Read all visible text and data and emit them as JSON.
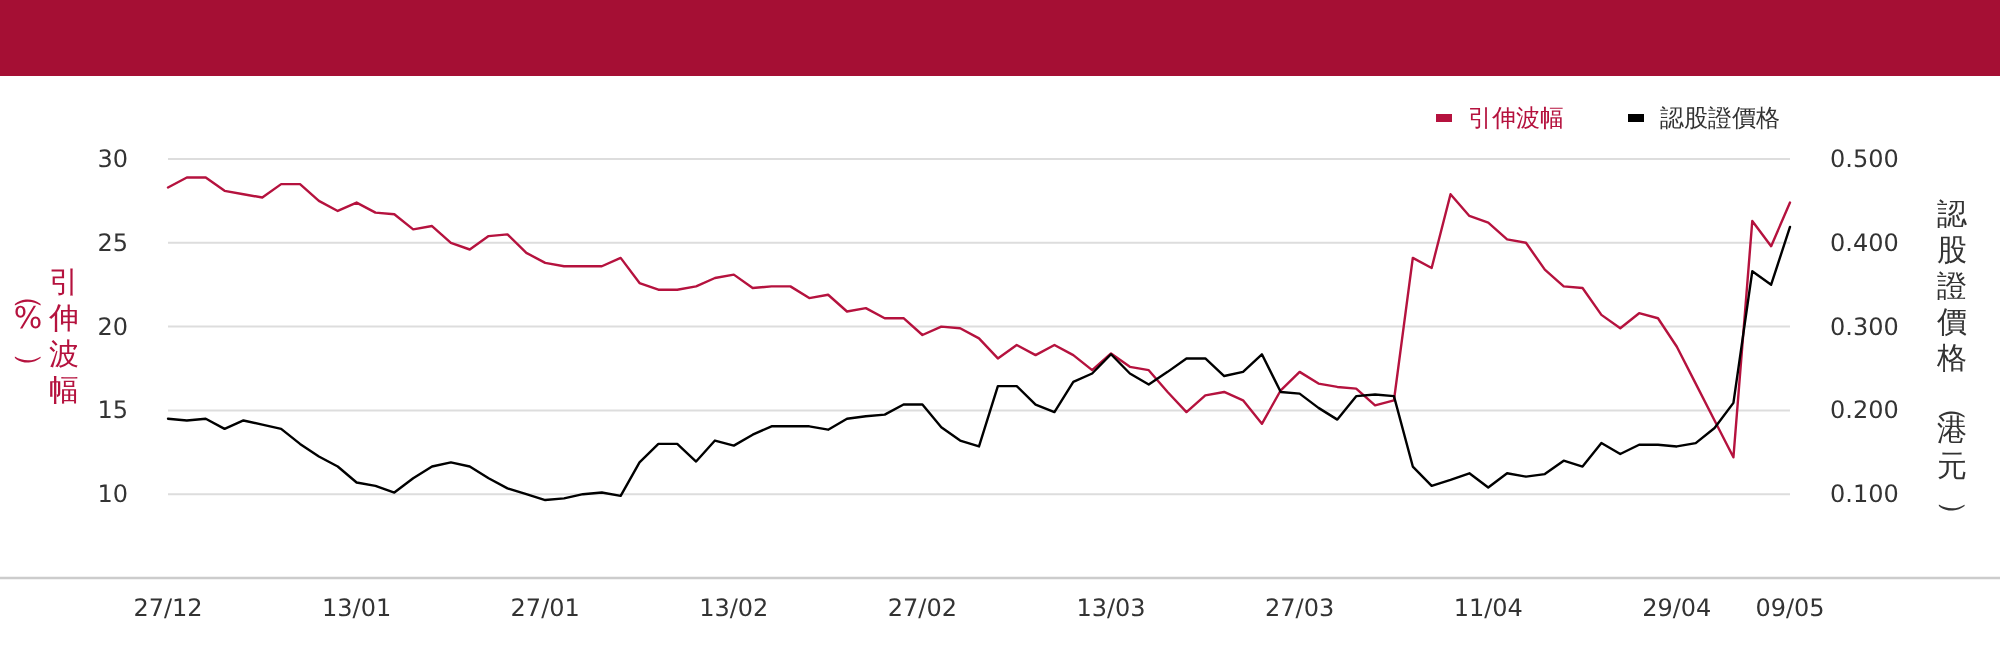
{
  "chart_data": {
    "type": "line",
    "ylabel": "引伸波幅（%）",
    "y2label": "認股證價格（港元）",
    "categories": [
      "27/12",
      null,
      null,
      null,
      null,
      null,
      null,
      null,
      null,
      null,
      "13/01",
      null,
      null,
      null,
      null,
      null,
      null,
      null,
      null,
      null,
      "27/01",
      null,
      null,
      null,
      null,
      null,
      null,
      null,
      null,
      null,
      "13/02",
      null,
      null,
      null,
      null,
      null,
      null,
      null,
      null,
      null,
      "27/02",
      null,
      null,
      null,
      null,
      null,
      null,
      null,
      null,
      null,
      "13/03",
      null,
      null,
      null,
      null,
      null,
      null,
      null,
      null,
      null,
      "27/03",
      null,
      null,
      null,
      null,
      null,
      null,
      null,
      null,
      null,
      "11/04",
      null,
      null,
      null,
      null,
      null,
      null,
      null,
      null,
      null,
      "29/04",
      null,
      null,
      null,
      null,
      null,
      "09/05"
    ],
    "series": [
      {
        "name": "引伸波幅",
        "color": "#b5123e",
        "values": [
          28.3,
          28.9,
          28.9,
          28.1,
          27.9,
          27.7,
          28.5,
          28.5,
          27.5,
          26.9,
          27.4,
          26.8,
          26.7,
          25.8,
          26.0,
          25.0,
          24.6,
          25.4,
          25.5,
          24.4,
          23.8,
          23.6,
          23.6,
          23.6,
          24.1,
          22.6,
          22.2,
          22.2,
          22.4,
          22.9,
          23.1,
          22.3,
          22.4,
          22.4,
          21.7,
          21.9,
          20.9,
          21.1,
          20.5,
          20.5,
          19.5,
          20.0,
          19.9,
          19.3,
          18.1,
          18.9,
          18.3,
          18.9,
          18.3,
          17.4,
          18.4,
          17.6,
          17.4,
          16.1,
          14.9,
          15.9,
          16.1,
          15.6,
          14.2,
          16.2,
          17.3,
          16.6,
          16.4,
          16.3,
          15.3,
          15.6,
          24.1,
          23.5,
          27.9,
          26.6,
          26.2,
          25.2,
          25.0,
          23.4,
          22.4,
          22.3,
          20.7,
          19.9,
          20.8,
          20.5,
          18.8,
          16.6,
          14.4,
          12.2,
          26.3,
          24.8,
          27.4
        ]
      },
      {
        "name": "認股證價格",
        "color": "#000000",
        "axis": "y2",
        "values": [
          0.19,
          0.188,
          0.19,
          0.178,
          0.188,
          0.183,
          0.178,
          0.16,
          0.145,
          0.133,
          0.114,
          0.11,
          0.102,
          0.119,
          0.133,
          0.138,
          0.133,
          0.119,
          0.107,
          0.1,
          0.093,
          0.095,
          0.1,
          0.102,
          0.098,
          0.138,
          0.16,
          0.16,
          0.139,
          0.164,
          0.158,
          0.171,
          0.181,
          0.181,
          0.181,
          0.177,
          0.19,
          0.193,
          0.195,
          0.207,
          0.207,
          0.18,
          0.164,
          0.157,
          0.229,
          0.229,
          0.207,
          0.198,
          0.234,
          0.244,
          0.267,
          0.244,
          0.231,
          0.246,
          0.262,
          0.262,
          0.241,
          0.246,
          0.267,
          0.222,
          0.22,
          0.203,
          0.189,
          0.217,
          0.219,
          0.217,
          0.133,
          0.11,
          0.117,
          0.125,
          0.108,
          0.125,
          0.121,
          0.124,
          0.14,
          0.133,
          0.161,
          0.148,
          0.159,
          0.159,
          0.157,
          0.161,
          0.179,
          0.209,
          0.366,
          0.35,
          0.419
        ]
      }
    ],
    "ylim": [
      5,
      30
    ],
    "yticks": [
      10,
      15,
      20,
      25,
      30
    ],
    "y2lim": [
      0,
      0.5
    ],
    "y2ticks": [
      {
        "value": 0.1,
        "label": "0.100"
      },
      {
        "value": 0.2,
        "label": "0.200"
      },
      {
        "value": 0.3,
        "label": "0.300"
      },
      {
        "value": 0.4,
        "label": "0.400"
      },
      {
        "value": 0.5,
        "label": "0.500"
      }
    ],
    "grid": "y",
    "legend": "top right"
  }
}
